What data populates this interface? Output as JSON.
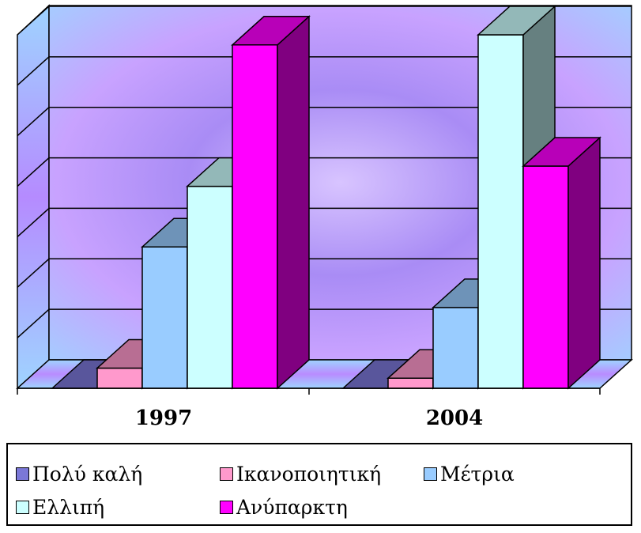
{
  "chart_data": {
    "type": "bar",
    "variant": "3d-clustered-column",
    "categories": [
      "1997",
      "2004"
    ],
    "series": [
      {
        "name": "Πολύ καλή",
        "values": [
          0,
          0
        ],
        "color": "#7b78d8"
      },
      {
        "name": "Ικανοποιητική",
        "values": [
          0.4,
          0.2
        ],
        "color": "#ff99cc"
      },
      {
        "name": "Μέτρια",
        "values": [
          2.8,
          1.6
        ],
        "color": "#99ccff"
      },
      {
        "name": "Ελλιπή",
        "values": [
          4.0,
          7.0
        ],
        "color": "#ccffff"
      },
      {
        "name": "Ανύπαρκτη",
        "values": [
          6.8,
          4.4
        ],
        "color": "#ff00ff"
      }
    ],
    "ylim": [
      0,
      7
    ],
    "y_gridlines": 7,
    "grid": true,
    "legend_position": "bottom",
    "title": "",
    "xlabel": "",
    "ylabel": "",
    "y_tick_labels_shown": false,
    "colors": {
      "wall_gradient": [
        "#c9a8ff",
        "#9b7cf2",
        "#bfe0ff"
      ],
      "gridline": "#000000"
    }
  }
}
